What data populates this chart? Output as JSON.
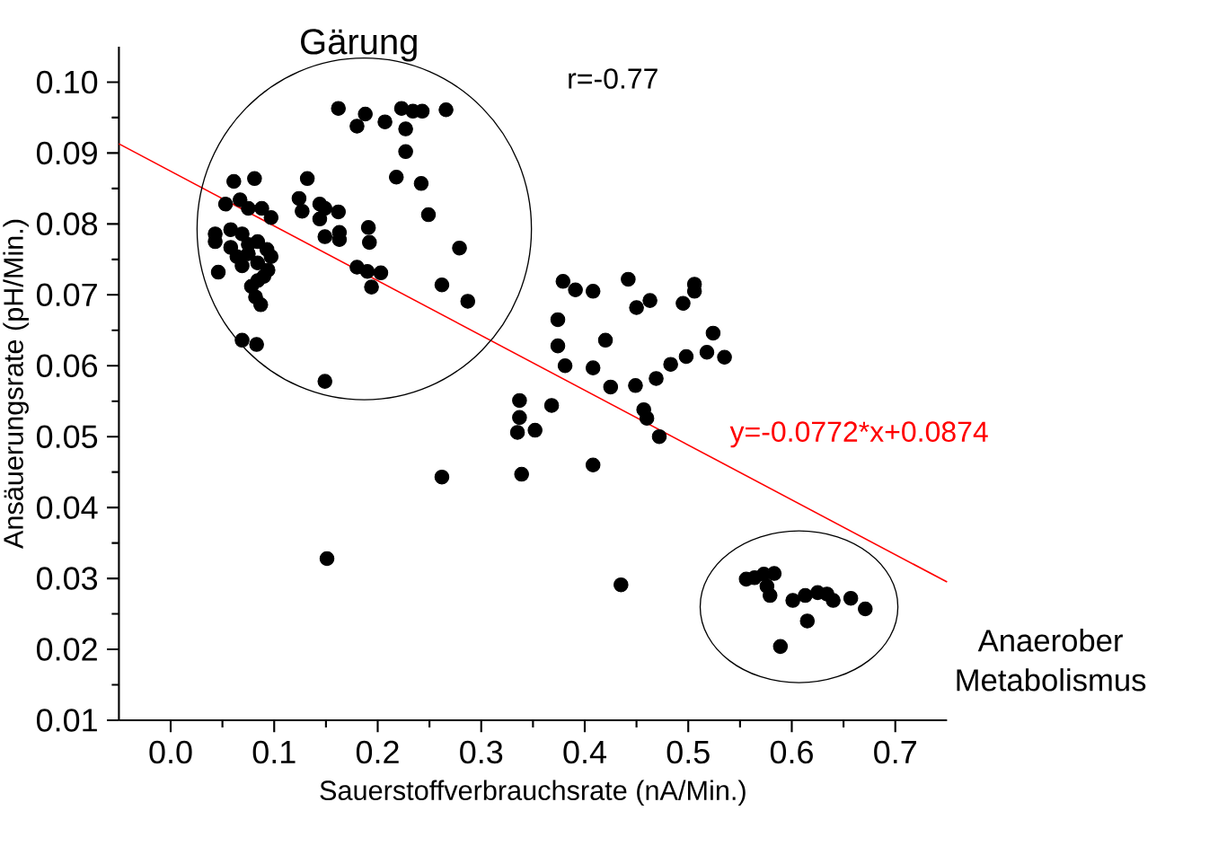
{
  "chart_data": {
    "type": "scatter",
    "xlabel": "Sauerstoffverbrauchsrate (nA/Min.)",
    "ylabel": "Ansäuerungsrate (pH/Min.)",
    "xlim": [
      -0.05,
      0.75
    ],
    "ylim": [
      0.01,
      0.105
    ],
    "xticks": [
      {
        "value": 0,
        "label": "0.0"
      },
      0.1,
      0.2,
      0.3,
      0.4,
      0.5,
      0.6,
      0.7
    ],
    "yticks": [
      0.01,
      0.02,
      0.03,
      0.04,
      0.05,
      0.06,
      0.07,
      0.08,
      0.09,
      {
        "value": 0.1,
        "label": "0.10"
      }
    ],
    "grid": false,
    "legend": false,
    "annotations": [
      "Gärung",
      "r=-0.77",
      "Anaerober Metabolismus"
    ],
    "series": [
      {
        "color": "#000000",
        "marker": "circle",
        "x": [
          0.162,
          0.18,
          0.188,
          0.207,
          0.223,
          0.227,
          0.234,
          0.243,
          0.266,
          0.227,
          0.218,
          0.242,
          0.249,
          0.279,
          0.262,
          0.287,
          0.132,
          0.124,
          0.127,
          0.144,
          0.149,
          0.162,
          0.144,
          0.149,
          0.163,
          0.163,
          0.191,
          0.192,
          0.18,
          0.19,
          0.203,
          0.194,
          0.149,
          0.061,
          0.081,
          0.053,
          0.067,
          0.075,
          0.088,
          0.097,
          0.043,
          0.043,
          0.058,
          0.069,
          0.075,
          0.084,
          0.093,
          0.097,
          0.064,
          0.069,
          0.084,
          0.094,
          0.046,
          0.078,
          0.084,
          0.082,
          0.087,
          0.069,
          0.083,
          0.058,
          0.075,
          0.09,
          0.379,
          0.391,
          0.408,
          0.442,
          0.45,
          0.463,
          0.495,
          0.506,
          0.506,
          0.374,
          0.374,
          0.42,
          0.381,
          0.408,
          0.425,
          0.449,
          0.469,
          0.483,
          0.498,
          0.518,
          0.524,
          0.535,
          0.457,
          0.46,
          0.472,
          0.337,
          0.337,
          0.335,
          0.352,
          0.368,
          0.339,
          0.262,
          0.408,
          0.435,
          0.151,
          0.556,
          0.564,
          0.573,
          0.583,
          0.576,
          0.579,
          0.601,
          0.613,
          0.625,
          0.634,
          0.64,
          0.657,
          0.671,
          0.615,
          0.589
        ],
        "values": [
          0.0963,
          0.0938,
          0.0955,
          0.0944,
          0.0963,
          0.0934,
          0.0959,
          0.0959,
          0.0961,
          0.0902,
          0.0866,
          0.0857,
          0.0813,
          0.0766,
          0.0714,
          0.0691,
          0.0864,
          0.0836,
          0.0818,
          0.0828,
          0.0822,
          0.0817,
          0.0807,
          0.0782,
          0.0788,
          0.0778,
          0.0795,
          0.0774,
          0.0739,
          0.0733,
          0.0731,
          0.0711,
          0.0578,
          0.086,
          0.0864,
          0.0828,
          0.0834,
          0.0822,
          0.0822,
          0.0809,
          0.0786,
          0.0775,
          0.0792,
          0.0786,
          0.0771,
          0.0775,
          0.0764,
          0.0754,
          0.0754,
          0.0741,
          0.0745,
          0.0735,
          0.0732,
          0.0712,
          0.072,
          0.0697,
          0.0686,
          0.0636,
          0.063,
          0.0767,
          0.0758,
          0.0726,
          0.0719,
          0.0707,
          0.0705,
          0.0722,
          0.0682,
          0.0692,
          0.0688,
          0.0715,
          0.0705,
          0.0665,
          0.0628,
          0.0636,
          0.06,
          0.0597,
          0.057,
          0.0572,
          0.0582,
          0.0602,
          0.0613,
          0.0619,
          0.0646,
          0.0612,
          0.0538,
          0.0526,
          0.05,
          0.0551,
          0.0527,
          0.0506,
          0.0509,
          0.0544,
          0.0447,
          0.0443,
          0.046,
          0.0291,
          0.0328,
          0.0299,
          0.0301,
          0.0306,
          0.0307,
          0.0289,
          0.0276,
          0.0269,
          0.0276,
          0.028,
          0.0278,
          0.0269,
          0.0272,
          0.0257,
          0.024,
          0.0204
        ]
      },
      {
        "type": "line",
        "name": "y=-0.0772*x+0.0874",
        "color": "#ff0000",
        "marker": "none",
        "line_style": "solid",
        "x": [
          -0.05,
          0.75
        ],
        "values": [
          0.0913,
          0.0295
        ]
      }
    ]
  }
}
